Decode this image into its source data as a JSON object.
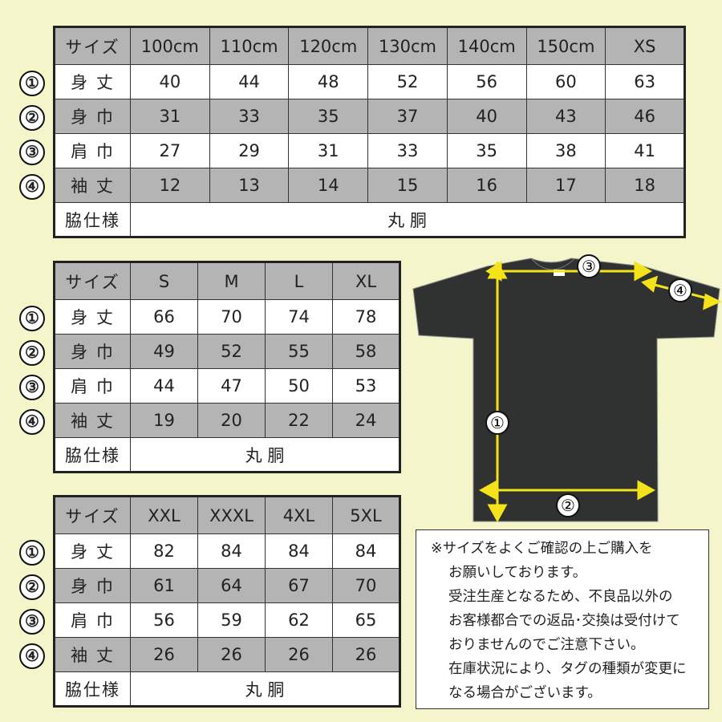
{
  "tables": [
    {
      "header": [
        "サイズ",
        "100cm",
        "110cm",
        "120cm",
        "130cm",
        "140cm",
        "150cm",
        "XS"
      ],
      "rows": [
        {
          "marker": "①",
          "label": "身 丈",
          "values": [
            "40",
            "44",
            "48",
            "52",
            "56",
            "60",
            "63"
          ]
        },
        {
          "marker": "②",
          "label": "身 巾",
          "values": [
            "31",
            "33",
            "35",
            "37",
            "40",
            "43",
            "46"
          ]
        },
        {
          "marker": "③",
          "label": "肩 巾",
          "values": [
            "27",
            "29",
            "31",
            "33",
            "35",
            "38",
            "41"
          ]
        },
        {
          "marker": "④",
          "label": "袖 丈",
          "values": [
            "12",
            "13",
            "14",
            "15",
            "16",
            "17",
            "18"
          ]
        }
      ],
      "side_label": "脇仕様",
      "side_value": "丸 胴"
    },
    {
      "header": [
        "サイズ",
        "S",
        "M",
        "L",
        "XL"
      ],
      "rows": [
        {
          "marker": "①",
          "label": "身 丈",
          "values": [
            "66",
            "70",
            "74",
            "78"
          ]
        },
        {
          "marker": "②",
          "label": "身 巾",
          "values": [
            "49",
            "52",
            "55",
            "58"
          ]
        },
        {
          "marker": "③",
          "label": "肩 巾",
          "values": [
            "44",
            "47",
            "50",
            "53"
          ]
        },
        {
          "marker": "④",
          "label": "袖 丈",
          "values": [
            "19",
            "20",
            "22",
            "24"
          ]
        }
      ],
      "side_label": "脇仕様",
      "side_value": "丸 胴"
    },
    {
      "header": [
        "サイズ",
        "XXL",
        "XXXL",
        "4XL",
        "5XL"
      ],
      "rows": [
        {
          "marker": "①",
          "label": "身 丈",
          "values": [
            "82",
            "84",
            "84",
            "84"
          ]
        },
        {
          "marker": "②",
          "label": "身 巾",
          "values": [
            "61",
            "64",
            "67",
            "70"
          ]
        },
        {
          "marker": "③",
          "label": "肩 巾",
          "values": [
            "56",
            "59",
            "62",
            "65"
          ]
        },
        {
          "marker": "④",
          "label": "袖 丈",
          "values": [
            "26",
            "26",
            "26",
            "26"
          ]
        }
      ],
      "side_label": "脇仕様",
      "side_value": "丸 胴"
    }
  ],
  "diagram": {
    "markers": [
      "①",
      "②",
      "③",
      "④"
    ],
    "shirt_color": "#2f3230",
    "arrow_color": "#f5e31a"
  },
  "notes": [
    "※サイズをよくご確認の上ご購入を",
    "お願いしております。",
    "受注生産となるため、不良品以外の",
    "お客様都合での返品･交換は受付けて",
    "おりませんのでご注意下さい。",
    "在庫状況により、タグの種類が変更に",
    "なる場合がございます。"
  ],
  "colors": {
    "background": "#f4f5cb",
    "gray_row": "#b4b4b4"
  }
}
